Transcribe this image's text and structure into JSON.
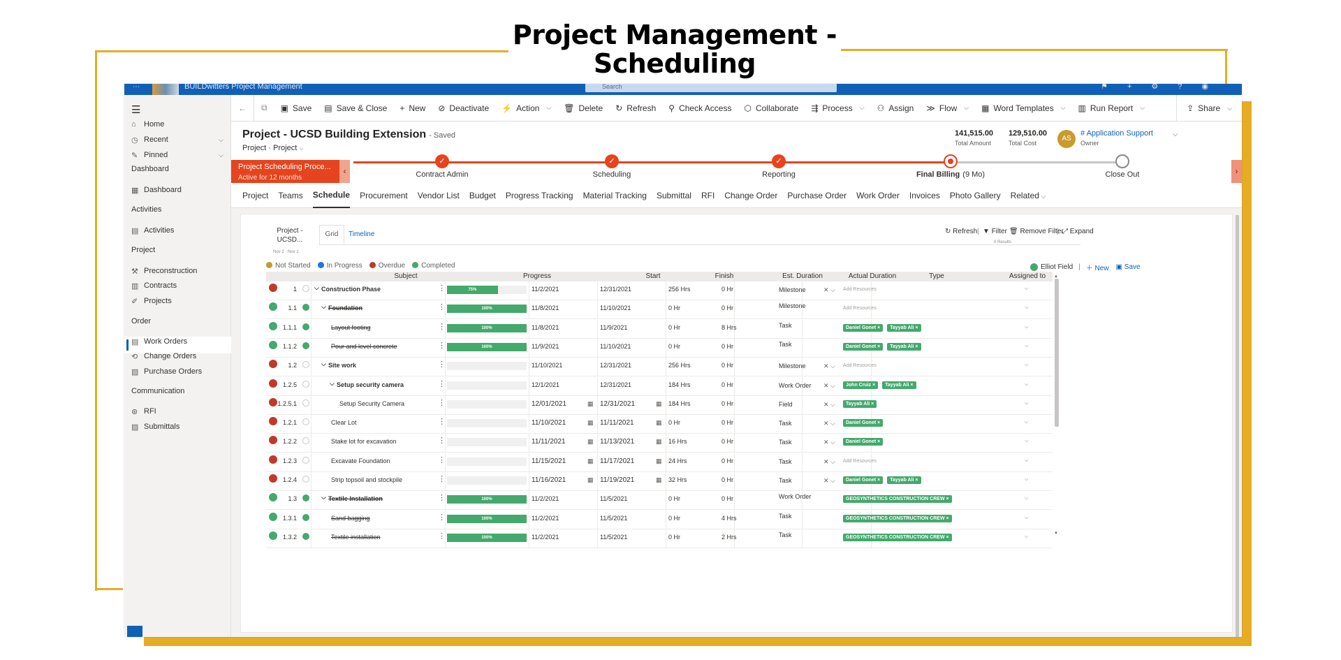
{
  "headline": "Project Management - Scheduling",
  "colors": {
    "accent": "#e5ac24",
    "brand": "#1160b7",
    "bpf": "#e5441e",
    "completed": "#43a96c",
    "overdue": "#c0392b",
    "in_progress": "#1e73e8",
    "not_started": "#c49a2a"
  },
  "topbar": {
    "app_name": "BUILDwitters Project Management",
    "search_placeholder": "Search"
  },
  "command_bar": {
    "items": [
      {
        "label": "Save",
        "icon": "save-icon"
      },
      {
        "label": "Save & Close",
        "icon": "save-close-icon"
      },
      {
        "label": "New",
        "icon": "plus-icon"
      },
      {
        "label": "Deactivate",
        "icon": "deactivate-icon"
      },
      {
        "label": "Action",
        "icon": "action-icon",
        "menu": true
      },
      {
        "label": "Delete",
        "icon": "trash-icon"
      },
      {
        "label": "Refresh",
        "icon": "refresh-icon"
      },
      {
        "label": "Check Access",
        "icon": "check-access-icon"
      },
      {
        "label": "Collaborate",
        "icon": "collaborate-icon"
      },
      {
        "label": "Process",
        "icon": "process-icon",
        "menu": true
      },
      {
        "label": "Assign",
        "icon": "assign-icon"
      },
      {
        "label": "Flow",
        "icon": "flow-icon",
        "menu": true
      },
      {
        "label": "Word Templates",
        "icon": "word-icon",
        "menu": true
      },
      {
        "label": "Run Report",
        "icon": "report-icon",
        "menu": true
      }
    ],
    "share": "Share"
  },
  "sidebar": {
    "items": [
      {
        "label": "Home",
        "icon": "home-icon"
      },
      {
        "label": "Recent",
        "icon": "clock-icon",
        "expand": true
      },
      {
        "label": "Pinned",
        "icon": "pin-icon",
        "expand": true
      }
    ],
    "groups": [
      {
        "title": "Dashboard",
        "items": [
          {
            "label": "Dashboard",
            "icon": "dashboard-icon"
          }
        ]
      },
      {
        "title": "Activities",
        "items": [
          {
            "label": "Activities",
            "icon": "activities-icon"
          }
        ]
      },
      {
        "title": "Project",
        "items": [
          {
            "label": "Preconstruction",
            "icon": "preconstruction-icon"
          },
          {
            "label": "Contracts",
            "icon": "contracts-icon"
          },
          {
            "label": "Projects",
            "icon": "projects-icon",
            "selected": true
          }
        ]
      },
      {
        "title": "Order",
        "items": [
          {
            "label": "Work Orders",
            "icon": "work-orders-icon"
          },
          {
            "label": "Change Orders",
            "icon": "change-orders-icon"
          },
          {
            "label": "Purchase Orders",
            "icon": "purchase-orders-icon"
          }
        ]
      },
      {
        "title": "Communication",
        "items": [
          {
            "label": "RFI",
            "icon": "rfi-icon"
          },
          {
            "label": "Submittals",
            "icon": "submittals-icon"
          }
        ]
      }
    ]
  },
  "record": {
    "title": "Project - UCSD Building Extension",
    "saved": "- Saved",
    "subtitle": "Project  ·  Project",
    "total_amount": "141,515.00",
    "total_amount_label": "Total Amount",
    "total_cost": "129,510.00",
    "total_cost_label": "Total Cost",
    "owner_initials": "AS",
    "owner_name": "# Application Support",
    "owner_role": "Owner"
  },
  "bpf": {
    "active_title": "Project Scheduling Proce...",
    "active_sub": "Active for 12 months",
    "stages": [
      "Contract Admin",
      "Scheduling",
      "Reporting",
      "Final Billing",
      "Close Out"
    ],
    "current_stage_duration": "(9 Mo)"
  },
  "tabs": [
    "Project",
    "Teams",
    "Schedule",
    "Procurement",
    "Vendor List",
    "Budget",
    "Progress Tracking",
    "Material Tracking",
    "Submittal",
    "RFI",
    "Change Order",
    "Purchase Order",
    "Work Order",
    "Invoices",
    "Photo Gallery",
    "Related"
  ],
  "schedule": {
    "project_label": "Project - UCSD...",
    "project_dates": "Nov 2 · Nov 1",
    "view_tabs": [
      "Grid",
      "Timeline"
    ],
    "tools": [
      "Refresh",
      "Filter",
      "Remove Filter",
      "Expand"
    ],
    "results": "0 Results",
    "legend": [
      "Not Started",
      "In Progress",
      "Overdue",
      "Completed"
    ],
    "right_tools": {
      "field": "Elliot Field",
      "new": "New",
      "save": "Save"
    },
    "columns": [
      "Subject",
      "Progress",
      "Start",
      "Finish",
      "Est. Duration",
      "Actual Duration",
      "Type",
      "Assigned to"
    ],
    "add_resources": "Add Resources",
    "rows": [
      {
        "status": "overdue",
        "num": "1",
        "ring": "empty",
        "subject": "Construction Phase",
        "level": 0,
        "chev": true,
        "strike": false,
        "bold": true,
        "progress": 75,
        "progress_label": "75%",
        "start": "11/2/2021",
        "finish": "12/31/2021",
        "est": "256 Hrs",
        "actual": "0 Hr",
        "type": "Milestone",
        "typex": true,
        "assigned": [],
        "edit": false
      },
      {
        "status": "completed",
        "num": "1.1",
        "ring": "full",
        "subject": "Foundation",
        "level": 1,
        "chev": true,
        "strike": true,
        "bold": true,
        "progress": 100,
        "progress_label": "100%",
        "start": "11/8/2021",
        "finish": "11/10/2021",
        "est": "0 Hr",
        "actual": "0 Hr",
        "type": "Milestone",
        "typex": false,
        "assigned": [],
        "edit": false
      },
      {
        "status": "completed",
        "num": "1.1.1",
        "ring": "full",
        "subject": "Layout footing",
        "level": 2,
        "chev": false,
        "strike": true,
        "bold": false,
        "progress": 100,
        "progress_label": "100%",
        "start": "11/8/2021",
        "finish": "11/9/2021",
        "est": "0 Hr",
        "actual": "8 Hrs",
        "type": "Task",
        "typex": false,
        "assigned": [
          "Daniel Gonet",
          "Tayyab Ali"
        ],
        "edit": false
      },
      {
        "status": "completed",
        "num": "1.1.2",
        "ring": "full",
        "subject": "Pour and level concrete",
        "level": 2,
        "chev": false,
        "strike": true,
        "bold": false,
        "progress": 100,
        "progress_label": "100%",
        "start": "11/9/2021",
        "finish": "11/10/2021",
        "est": "0 Hr",
        "actual": "0 Hr",
        "type": "Task",
        "typex": false,
        "assigned": [
          "Daniel Gonet",
          "Tayyab Ali"
        ],
        "edit": false
      },
      {
        "status": "overdue",
        "num": "1.2",
        "ring": "empty",
        "subject": "Site work",
        "level": 1,
        "chev": true,
        "strike": false,
        "bold": true,
        "progress": 0,
        "progress_label": "",
        "start": "11/10/2021",
        "finish": "12/31/2021",
        "est": "256 Hrs",
        "actual": "0 Hr",
        "type": "Milestone",
        "typex": true,
        "assigned": [],
        "edit": false
      },
      {
        "status": "overdue",
        "num": "1.2.5",
        "ring": "empty",
        "subject": "Setup security camera",
        "level": 2,
        "chev": true,
        "strike": false,
        "bold": true,
        "progress": 0,
        "progress_label": "",
        "start": "12/1/2021",
        "finish": "12/31/2021",
        "est": "184 Hrs",
        "actual": "0 Hr",
        "type": "Work Order",
        "typex": true,
        "assigned": [
          "John Cruiz",
          "Tayyab Ali"
        ],
        "edit": false
      },
      {
        "status": "overdue",
        "num": "1.2.5.1",
        "ring": "empty",
        "subject": "Setup Security Camera",
        "level": 3,
        "chev": false,
        "strike": false,
        "bold": false,
        "progress": 0,
        "progress_label": "",
        "start": "12/01/2021",
        "finish": "12/31/2021",
        "est": "184 Hrs",
        "actual": "0 Hr",
        "type": "Field",
        "typex": true,
        "assigned": [
          "Tayyab Ali"
        ],
        "edit": true
      },
      {
        "status": "overdue",
        "num": "1.2.1",
        "ring": "empty",
        "subject": "Clear Lot",
        "level": 2,
        "chev": false,
        "strike": false,
        "bold": false,
        "progress": 0,
        "progress_label": "",
        "start": "11/10/2021",
        "finish": "11/11/2021",
        "est": "0 Hr",
        "actual": "0 Hr",
        "type": "Task",
        "typex": true,
        "assigned": [
          "Daniel Gonet"
        ],
        "edit": true
      },
      {
        "status": "overdue",
        "num": "1.2.2",
        "ring": "empty",
        "subject": "Stake lot for excavation",
        "level": 2,
        "chev": false,
        "strike": false,
        "bold": false,
        "progress": 0,
        "progress_label": "",
        "start": "11/11/2021",
        "finish": "11/13/2021",
        "est": "16 Hrs",
        "actual": "0 Hr",
        "type": "Task",
        "typex": true,
        "assigned": [
          "Daniel Gonet"
        ],
        "edit": true
      },
      {
        "status": "overdue",
        "num": "1.2.3",
        "ring": "empty",
        "subject": "Excavate Foundation",
        "level": 2,
        "chev": false,
        "strike": false,
        "bold": false,
        "progress": 0,
        "progress_label": "",
        "start": "11/15/2021",
        "finish": "11/17/2021",
        "est": "24 Hrs",
        "actual": "0 Hr",
        "type": "Task",
        "typex": true,
        "assigned": [],
        "edit": true
      },
      {
        "status": "overdue",
        "num": "1.2.4",
        "ring": "empty",
        "subject": "Strip topsoil and stockpile",
        "level": 2,
        "chev": false,
        "strike": false,
        "bold": false,
        "progress": 0,
        "progress_label": "",
        "start": "11/16/2021",
        "finish": "11/19/2021",
        "est": "32 Hrs",
        "actual": "0 Hr",
        "type": "Task",
        "typex": true,
        "assigned": [
          "Daniel Gonet",
          "Tayyab Ali"
        ],
        "edit": true
      },
      {
        "status": "completed",
        "num": "1.3",
        "ring": "full",
        "subject": "Textile Installation",
        "level": 1,
        "chev": true,
        "strike": true,
        "bold": true,
        "progress": 100,
        "progress_label": "100%",
        "start": "11/2/2021",
        "finish": "11/5/2021",
        "est": "0 Hr",
        "actual": "0 Hr",
        "type": "Work Order",
        "typex": false,
        "assigned": [
          "GEOSYNTHETICS CONSTRUCTION CREW"
        ],
        "edit": false
      },
      {
        "status": "completed",
        "num": "1.3.1",
        "ring": "full",
        "subject": "Sand bagging",
        "level": 2,
        "chev": false,
        "strike": true,
        "bold": false,
        "progress": 100,
        "progress_label": "100%",
        "start": "11/2/2021",
        "finish": "11/5/2021",
        "est": "0 Hr",
        "actual": "4 Hrs",
        "type": "Task",
        "typex": false,
        "assigned": [
          "GEOSYNTHETICS CONSTRUCTION CREW"
        ],
        "edit": false
      },
      {
        "status": "completed",
        "num": "1.3.2",
        "ring": "full",
        "subject": "Textile installation",
        "level": 2,
        "chev": false,
        "strike": true,
        "bold": false,
        "progress": 100,
        "progress_label": "100%",
        "start": "11/2/2021",
        "finish": "11/5/2021",
        "est": "0 Hr",
        "actual": "2 Hrs",
        "type": "Task",
        "typex": false,
        "assigned": [
          "GEOSYNTHETICS CONSTRUCTION CREW"
        ],
        "edit": false
      }
    ]
  }
}
